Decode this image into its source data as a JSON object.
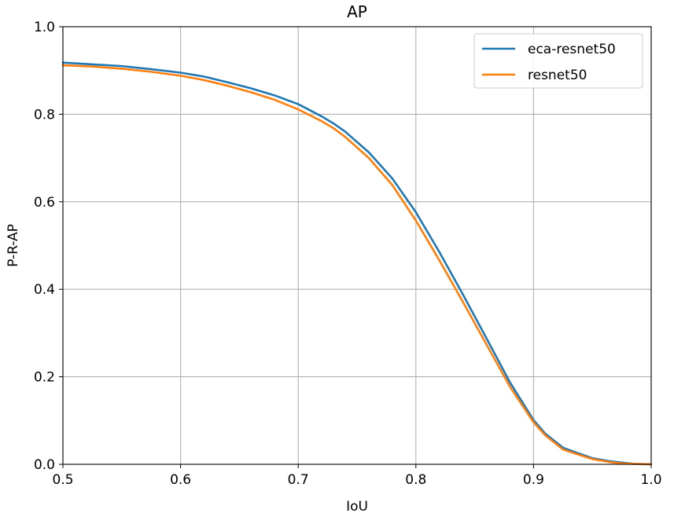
{
  "chart_data": {
    "type": "line",
    "title": "AP",
    "xlabel": "IoU",
    "ylabel": "P-R-AP",
    "xlim": [
      0.5,
      1.0
    ],
    "ylim": [
      0.0,
      1.0
    ],
    "xticks": [
      "0.5",
      "0.6",
      "0.7",
      "0.8",
      "0.9",
      "1.0"
    ],
    "yticks": [
      "0.0",
      "0.2",
      "0.4",
      "0.6",
      "0.8",
      "1.0"
    ],
    "grid": true,
    "legend_position": "top-right",
    "series": [
      {
        "name": "eca-resnet50",
        "color": "#1f77b4",
        "x": [
          0.5,
          0.525,
          0.55,
          0.575,
          0.6,
          0.62,
          0.64,
          0.66,
          0.68,
          0.7,
          0.72,
          0.73,
          0.74,
          0.76,
          0.78,
          0.8,
          0.82,
          0.84,
          0.86,
          0.88,
          0.9,
          0.91,
          0.925,
          0.935,
          0.95,
          0.965,
          0.975,
          0.985,
          1.0
        ],
        "y": [
          0.918,
          0.914,
          0.91,
          0.903,
          0.895,
          0.886,
          0.873,
          0.859,
          0.843,
          0.823,
          0.795,
          0.779,
          0.76,
          0.713,
          0.653,
          0.576,
          0.485,
          0.388,
          0.288,
          0.187,
          0.101,
          0.07,
          0.038,
          0.028,
          0.014,
          0.007,
          0.004,
          0.001,
          0.0
        ]
      },
      {
        "name": "resnet50",
        "color": "#ff7f0e",
        "x": [
          0.5,
          0.525,
          0.55,
          0.575,
          0.6,
          0.62,
          0.64,
          0.66,
          0.68,
          0.7,
          0.72,
          0.73,
          0.74,
          0.76,
          0.78,
          0.8,
          0.82,
          0.84,
          0.86,
          0.88,
          0.9,
          0.91,
          0.925,
          0.935,
          0.95,
          0.965,
          0.975,
          0.985,
          1.0
        ],
        "y": [
          0.912,
          0.909,
          0.904,
          0.897,
          0.888,
          0.878,
          0.865,
          0.85,
          0.833,
          0.811,
          0.784,
          0.768,
          0.748,
          0.7,
          0.638,
          0.557,
          0.466,
          0.371,
          0.274,
          0.177,
          0.096,
          0.066,
          0.034,
          0.025,
          0.012,
          0.005,
          0.002,
          0.001,
          0.0
        ]
      }
    ]
  }
}
